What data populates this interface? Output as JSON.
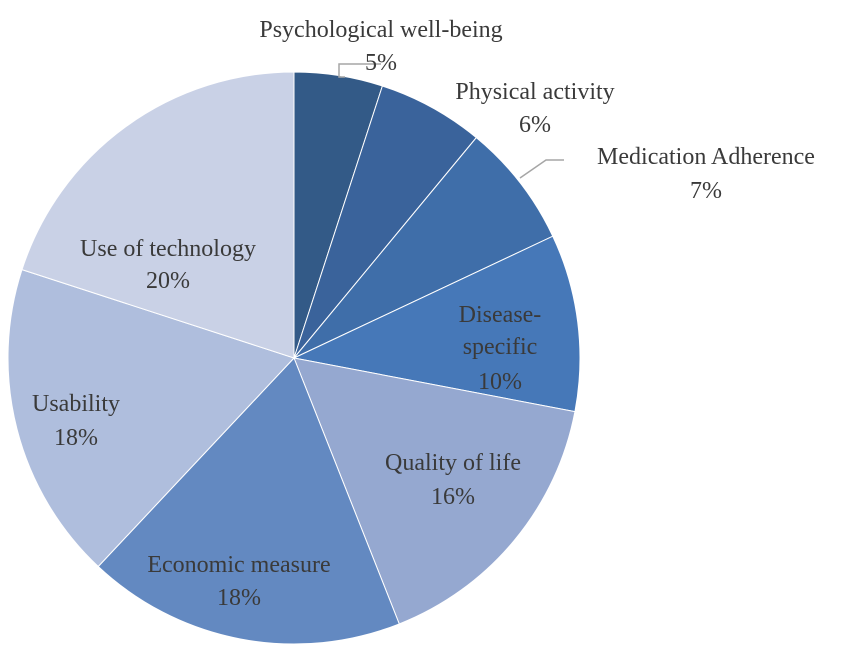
{
  "chart_data": {
    "type": "pie",
    "title": "",
    "start_angle_deg": 0,
    "direction": "clockwise",
    "slices": [
      {
        "label": "Psychological well-being",
        "value": 5,
        "value_label": "5%",
        "color": "#335a87"
      },
      {
        "label": "Physical activity",
        "value": 6,
        "value_label": "6%",
        "color": "#3a639b"
      },
      {
        "label": "Medication Adherence",
        "value": 7,
        "value_label": "7%",
        "color": "#3f6ea9"
      },
      {
        "label": "Disease-specific",
        "value": 10,
        "value_label": "10%",
        "color": "#4678b8",
        "label_lines": [
          "Disease-",
          "specific"
        ]
      },
      {
        "label": "Quality of life",
        "value": 16,
        "value_label": "16%",
        "color": "#95a8d0"
      },
      {
        "label": "Economic measure",
        "value": 18,
        "value_label": "18%",
        "color": "#6389c1"
      },
      {
        "label": "Usability",
        "value": 18,
        "value_label": "18%",
        "color": "#afbedd"
      },
      {
        "label": "Use of technology",
        "value": 20,
        "value_label": "20%",
        "color": "#c9d1e6"
      }
    ],
    "leader_lines_color": "#a6a6a6"
  }
}
